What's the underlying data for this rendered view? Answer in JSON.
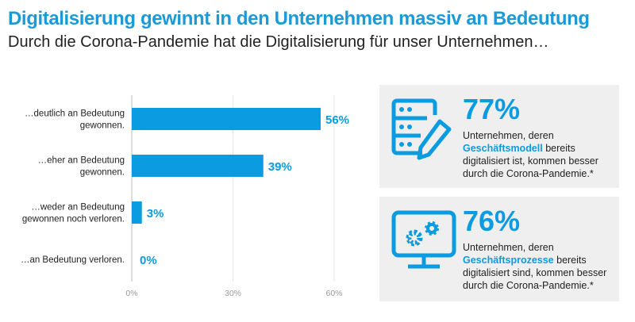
{
  "header": {
    "title": "Digitalisierung gewinnt in den Unternehmen massiv an Bedeutung",
    "subtitle": "Durch die Corona-Pandemie hat die Digitalisierung für unser Unternehmen…"
  },
  "colors": {
    "accent": "#0b9be0",
    "title": "#1b9ad8",
    "card_bg": "#efefef",
    "grid": "#e0e0e0"
  },
  "chart_data": {
    "type": "bar",
    "orientation": "horizontal",
    "categories": [
      [
        "…deutlich an Bedeutung",
        "gewonnen."
      ],
      [
        "…eher an Bedeutung",
        "gewonnen."
      ],
      [
        "…weder an Bedeutung",
        "gewonnen noch verloren."
      ],
      [
        "…an Bedeutung verloren."
      ]
    ],
    "values": [
      56,
      39,
      3,
      0
    ],
    "data_labels": [
      "56%",
      "39%",
      "3%",
      "0%"
    ],
    "xlim": [
      0,
      60
    ],
    "xticks": [
      0,
      30,
      60
    ],
    "xtick_labels": [
      "0%",
      "30%",
      "60%"
    ],
    "grid": true
  },
  "cards": [
    {
      "icon": "database-edit-icon",
      "value": "77%",
      "text_before": "Unternehmen, deren ",
      "highlight": "Geschäftsmodell",
      "text_after": " bereits digitalisiert ist, kommen besser durch die Corona-Pandemie.*"
    },
    {
      "icon": "monitor-gears-icon",
      "value": "76%",
      "text_before": "Unternehmen, deren ",
      "highlight": "Geschäftsprozesse",
      "text_after": " bereits digitalisiert sind, kommen besser durch die Corona-Pandemie.*"
    }
  ]
}
